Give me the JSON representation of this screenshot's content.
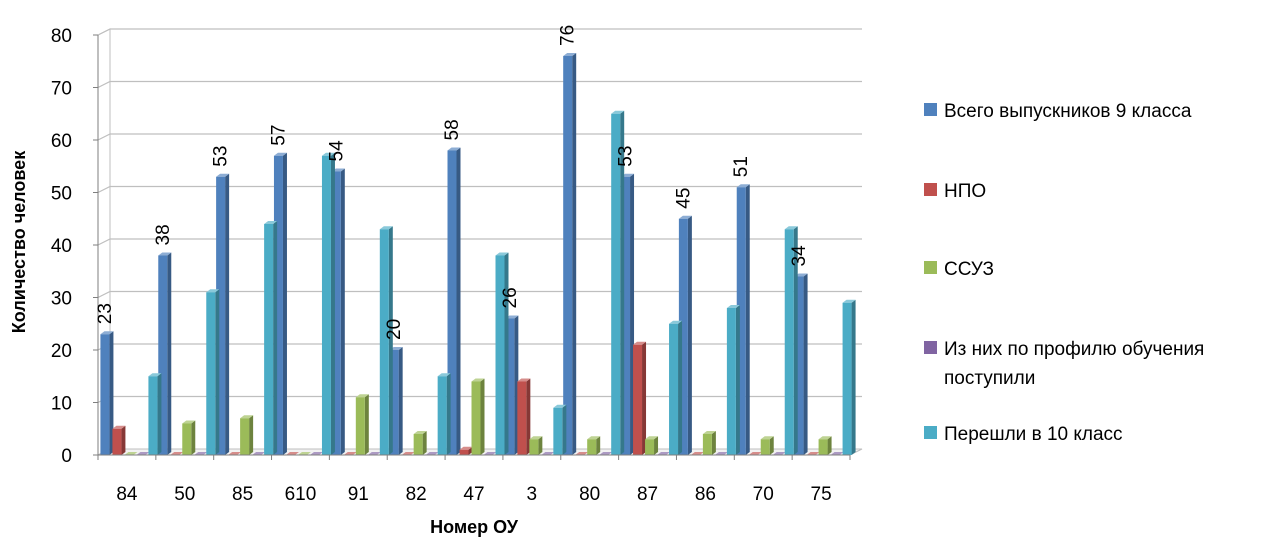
{
  "chart_data": {
    "type": "bar",
    "xlabel": "Номер ОУ",
    "ylabel": "Количество человек",
    "ylim": [
      0,
      80
    ],
    "yticks": [
      0,
      10,
      20,
      30,
      40,
      50,
      60,
      70,
      80
    ],
    "grid": true,
    "legend_position": "right",
    "categories": [
      "84",
      "50",
      "85",
      "610",
      "91",
      "82",
      "47",
      "3",
      "80",
      "87",
      "86",
      "70",
      "75"
    ],
    "series": [
      {
        "name": "Всего выпускников 9 класса",
        "color": "#4F81BD",
        "values": [
          23,
          38,
          53,
          57,
          54,
          20,
          58,
          26,
          76,
          53,
          45,
          51,
          34
        ],
        "show_labels": true
      },
      {
        "name": "НПО",
        "color": "#C0504D",
        "values": [
          5,
          0,
          0,
          0,
          0,
          0,
          1,
          14,
          0,
          21,
          0,
          0,
          0
        ],
        "show_labels": false
      },
      {
        "name": "ССУЗ",
        "color": "#9BBB59",
        "values": [
          0,
          6,
          7,
          0,
          11,
          4,
          14,
          3,
          3,
          3,
          4,
          3,
          3
        ],
        "show_labels": false
      },
      {
        "name_lines": [
          "Из них по профилю обучения",
          "поступили"
        ],
        "color": "#8064A2",
        "values": [
          0,
          0,
          0,
          0,
          0,
          0,
          0,
          0,
          0,
          0,
          0,
          0,
          0
        ],
        "show_labels": false
      },
      {
        "name": "Перешли в 10 класс",
        "color": "#4BACC6",
        "values": [
          15,
          31,
          44,
          57,
          43,
          15,
          38,
          9,
          65,
          25,
          28,
          43,
          29
        ],
        "show_labels": false
      }
    ]
  }
}
